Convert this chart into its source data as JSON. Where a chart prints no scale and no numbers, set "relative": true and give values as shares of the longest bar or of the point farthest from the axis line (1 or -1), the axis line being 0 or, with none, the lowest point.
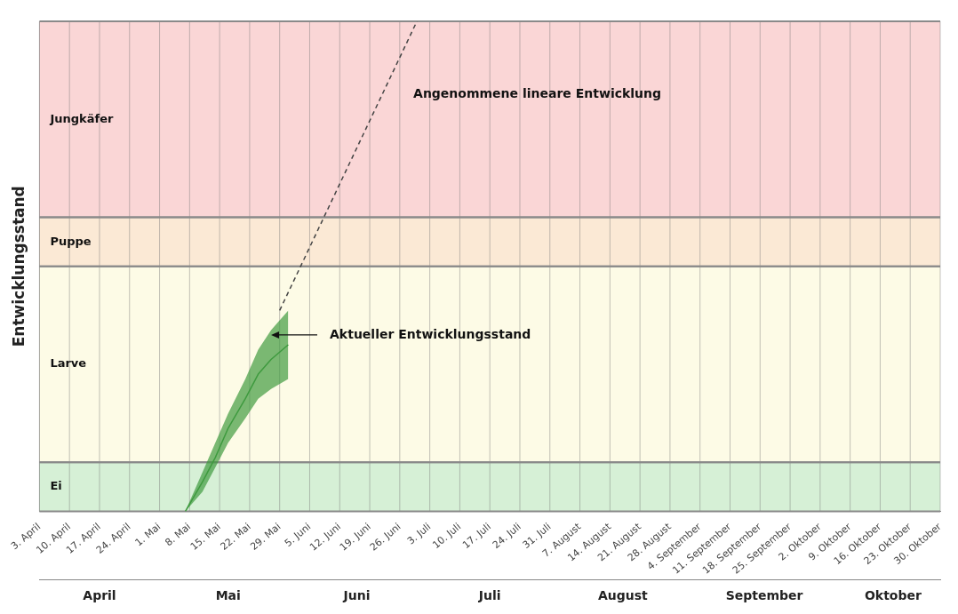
{
  "chart_data": {
    "type": "line",
    "relative": true,
    "ylabel": "Entwicklungsstand",
    "legend": false,
    "grid": "x",
    "marker": "none",
    "xlim": [
      "--04-03",
      "--10-30"
    ],
    "xticks": [
      {
        "value": "--04-03",
        "label": "3. April"
      },
      {
        "value": "--04-10",
        "label": "10. April"
      },
      {
        "value": "--04-17",
        "label": "17. April"
      },
      {
        "value": "--04-24",
        "label": "24. April"
      },
      {
        "value": "--05-01",
        "label": "1. Mai"
      },
      {
        "value": "--05-08",
        "label": "8. Mai"
      },
      {
        "value": "--05-15",
        "label": "15. Mai"
      },
      {
        "value": "--05-22",
        "label": "22. Mai"
      },
      {
        "value": "--05-29",
        "label": "29. Mai"
      },
      {
        "value": "--06-05",
        "label": "5. Juni"
      },
      {
        "value": "--06-12",
        "label": "12. Juni"
      },
      {
        "value": "--06-19",
        "label": "19. Juni"
      },
      {
        "value": "--06-26",
        "label": "26. Juni"
      },
      {
        "value": "--07-03",
        "label": "3. Juli"
      },
      {
        "value": "--07-10",
        "label": "10. Juli"
      },
      {
        "value": "--07-17",
        "label": "17. Juli"
      },
      {
        "value": "--07-24",
        "label": "24. Juli"
      },
      {
        "value": "--07-31",
        "label": "31. Juli"
      },
      {
        "value": "--08-07",
        "label": "7. August"
      },
      {
        "value": "--08-14",
        "label": "14. August"
      },
      {
        "value": "--08-21",
        "label": "21. August"
      },
      {
        "value": "--08-28",
        "label": "28. August"
      },
      {
        "value": "--09-04",
        "label": "4. September"
      },
      {
        "value": "--09-11",
        "label": "11. September"
      },
      {
        "value": "--09-18",
        "label": "18. September"
      },
      {
        "value": "--09-25",
        "label": "25. September"
      },
      {
        "value": "--10-02",
        "label": "2. Oktober"
      },
      {
        "value": "--10-09",
        "label": "9. Oktober"
      },
      {
        "value": "--10-16",
        "label": "16. Oktober"
      },
      {
        "value": "--10-23",
        "label": "23. Oktober"
      },
      {
        "value": "--10-30",
        "label": "30. Oktober"
      }
    ],
    "x2lim": [
      "--04-03",
      "--10-30"
    ],
    "x2ticks": [
      {
        "value": "--04-17",
        "label": "April"
      },
      {
        "value": "--05-17",
        "label": "Mai"
      },
      {
        "value": "--06-16",
        "label": "Juni"
      },
      {
        "value": "--07-17",
        "label": "Juli"
      },
      {
        "value": "--08-17",
        "label": "August"
      },
      {
        "value": "--09-19",
        "label": "September"
      },
      {
        "value": "--10-19",
        "label": "Oktober"
      }
    ],
    "bands": [
      {
        "axis": "y",
        "from": 0,
        "to": 0.1,
        "label": "Ei",
        "color": "#d6f0d6"
      },
      {
        "axis": "y",
        "from": 0.1,
        "to": 0.5,
        "label": "Larve",
        "color": "#fdfbe6"
      },
      {
        "axis": "y",
        "from": 0.5,
        "to": 0.6,
        "label": "Puppe",
        "color": "#fbe9d5"
      },
      {
        "axis": "y",
        "from": 0.6,
        "to": 1,
        "label": "Jungkäfer",
        "color": "#fad6d6"
      }
    ],
    "series": [
      {
        "color": "#3f9a3f",
        "x": [
          "--05-07",
          "--05-11",
          "--05-14",
          "--05-17",
          "--05-21",
          "--05-24",
          "--05-27",
          "--05-31"
        ],
        "values": [
          0,
          0.06,
          0.11,
          0.17,
          0.23,
          0.28,
          0.31,
          0.34
        ],
        "lower": [
          0,
          0.04,
          0.09,
          0.14,
          0.19,
          0.23,
          0.25,
          0.27
        ],
        "upper": [
          0,
          0.08,
          0.14,
          0.2,
          0.27,
          0.33,
          0.37,
          0.41
        ]
      },
      {
        "color": "#444444",
        "line_style": "dashed",
        "x": [
          "--05-29",
          "--06-30"
        ],
        "values": [
          0.41,
          1
        ]
      }
    ],
    "annotations": [
      "Angenommene lineare Entwicklung",
      {
        "text": "Aktueller Entwicklungsstand",
        "x": "--05-27",
        "y": 0.36
      }
    ]
  }
}
